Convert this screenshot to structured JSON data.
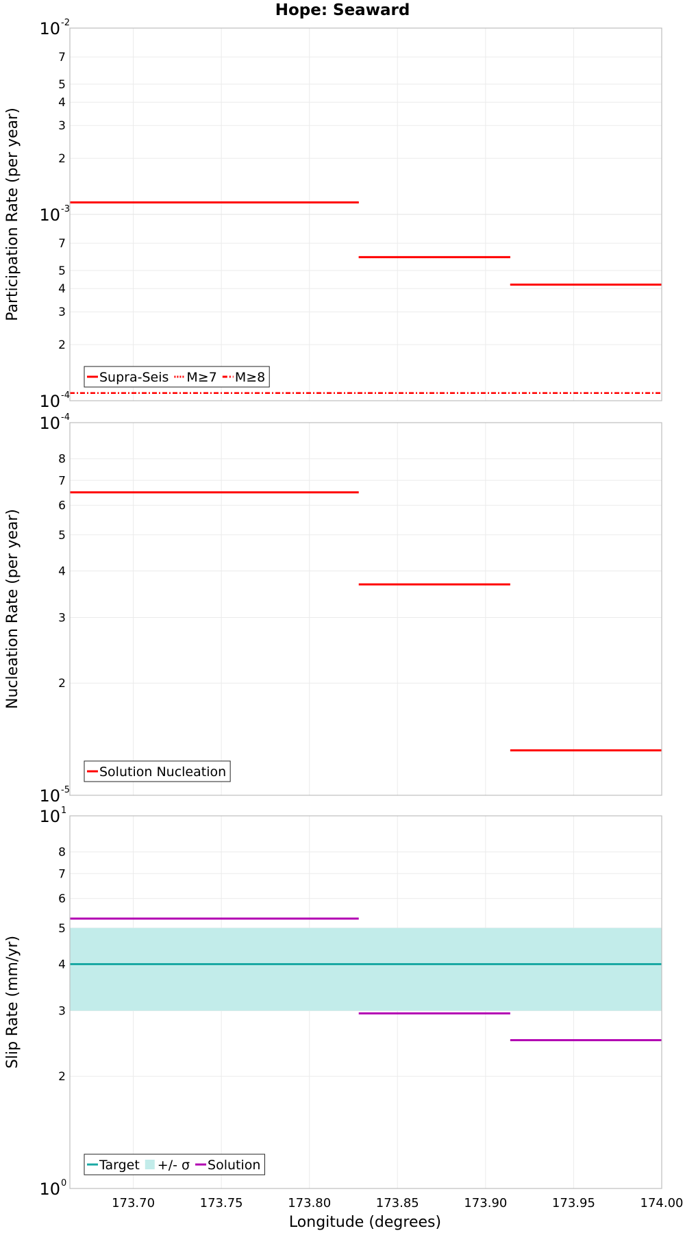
{
  "figure": {
    "title": "Hope: Seaward",
    "xlabel": "Longitude (degrees)"
  },
  "chart_data": [
    {
      "type": "line",
      "id": "participation",
      "ylabel": "Participation Rate (per year)",
      "yscale": "log",
      "ylim": [
        0.0001,
        0.01
      ],
      "xlim": [
        173.664,
        174.0
      ],
      "major_ticks": [
        {
          "value": 0.01,
          "base": "10",
          "exp": "-2"
        },
        {
          "value": 0.001,
          "base": "10",
          "exp": "-3"
        },
        {
          "value": 0.0001,
          "base": "10",
          "exp": "-4"
        }
      ],
      "minor_ticks": [
        {
          "value": 0.007,
          "label": "7"
        },
        {
          "value": 0.005,
          "label": "5"
        },
        {
          "value": 0.004,
          "label": "4"
        },
        {
          "value": 0.003,
          "label": "3"
        },
        {
          "value": 0.002,
          "label": "2"
        },
        {
          "value": 0.0007,
          "label": "7"
        },
        {
          "value": 0.0005,
          "label": "5"
        },
        {
          "value": 0.0004,
          "label": "4"
        },
        {
          "value": 0.0003,
          "label": "3"
        },
        {
          "value": 0.0002,
          "label": "2"
        }
      ],
      "series": [
        {
          "name": "Supra-Seis",
          "color": "#ff0000",
          "style": "solid",
          "segments": [
            {
              "x": [
                173.664,
                173.828
              ],
              "y": 0.00116
            },
            {
              "x": [
                173.828,
                173.914
              ],
              "y": 0.00059
            },
            {
              "x": [
                173.914,
                174.0
              ],
              "y": 0.00042
            }
          ]
        },
        {
          "name": "M≥7",
          "color": "#ff0000",
          "style": "dotted",
          "segments": [
            {
              "x": [
                173.664,
                173.828
              ],
              "y": 0.00116
            },
            {
              "x": [
                173.828,
                173.914
              ],
              "y": 0.00059
            },
            {
              "x": [
                173.914,
                174.0
              ],
              "y": 0.00042
            }
          ]
        },
        {
          "name": "M≥8",
          "color": "#ff0000",
          "style": "dashdot",
          "segments": [
            {
              "x": [
                173.664,
                174.0
              ],
              "y": 0.00011
            }
          ]
        }
      ]
    },
    {
      "type": "line",
      "id": "nucleation",
      "ylabel": "Nucleation Rate (per year)",
      "yscale": "log",
      "ylim": [
        1e-05,
        0.0001
      ],
      "xlim": [
        173.664,
        174.0
      ],
      "major_ticks": [
        {
          "value": 0.0001,
          "base": "10",
          "exp": "-4"
        },
        {
          "value": 1e-05,
          "base": "10",
          "exp": "-5"
        }
      ],
      "minor_ticks": [
        {
          "value": 8e-05,
          "label": "8"
        },
        {
          "value": 7e-05,
          "label": "7"
        },
        {
          "value": 6e-05,
          "label": "6"
        },
        {
          "value": 5e-05,
          "label": "5"
        },
        {
          "value": 4e-05,
          "label": "4"
        },
        {
          "value": 3e-05,
          "label": "3"
        },
        {
          "value": 2e-05,
          "label": "2"
        }
      ],
      "series": [
        {
          "name": "Solution Nucleation",
          "color": "#ff0000",
          "style": "solid",
          "segments": [
            {
              "x": [
                173.664,
                173.828
              ],
              "y": 6.5e-05
            },
            {
              "x": [
                173.828,
                173.914
              ],
              "y": 3.68e-05
            },
            {
              "x": [
                173.914,
                174.0
              ],
              "y": 1.32e-05
            }
          ]
        }
      ]
    },
    {
      "type": "line",
      "id": "slip",
      "ylabel": "Slip Rate (mm/yr)",
      "yscale": "log",
      "ylim": [
        1,
        10
      ],
      "xlim": [
        173.664,
        174.0
      ],
      "major_ticks": [
        {
          "value": 10,
          "base": "10",
          "exp": "1"
        },
        {
          "value": 1,
          "base": "10",
          "exp": "0"
        }
      ],
      "minor_ticks": [
        {
          "value": 8,
          "label": "8"
        },
        {
          "value": 7,
          "label": "7"
        },
        {
          "value": 6,
          "label": "6"
        },
        {
          "value": 5,
          "label": "5"
        },
        {
          "value": 4,
          "label": "4"
        },
        {
          "value": 3,
          "label": "3"
        },
        {
          "value": 2,
          "label": "2"
        }
      ],
      "band": {
        "name": "+/- σ",
        "color": "#c2ecea",
        "y": [
          3.0,
          5.0
        ],
        "x": [
          173.664,
          174.0
        ]
      },
      "series": [
        {
          "name": "Target",
          "color": "#1aa9a4",
          "style": "solid",
          "segments": [
            {
              "x": [
                173.664,
                174.0
              ],
              "y": 4.0
            }
          ]
        },
        {
          "name": "Solution",
          "color": "#b200b2",
          "style": "solid",
          "segments": [
            {
              "x": [
                173.664,
                173.828
              ],
              "y": 5.3
            },
            {
              "x": [
                173.828,
                173.914
              ],
              "y": 2.95
            },
            {
              "x": [
                173.914,
                174.0
              ],
              "y": 2.5
            }
          ]
        }
      ]
    }
  ],
  "xaxis": {
    "ticks": [
      {
        "value": 173.7,
        "label": "173.70"
      },
      {
        "value": 173.75,
        "label": "173.75"
      },
      {
        "value": 173.8,
        "label": "173.80"
      },
      {
        "value": 173.85,
        "label": "173.85"
      },
      {
        "value": 173.9,
        "label": "173.90"
      },
      {
        "value": 173.95,
        "label": "173.95"
      },
      {
        "value": 174.0,
        "label": "174.00"
      }
    ]
  },
  "legends": [
    {
      "panel": "participation",
      "placement": "bottom-left",
      "entries": [
        {
          "label": "Supra-Seis",
          "color": "#ff0000",
          "kind": "solid"
        },
        {
          "label": "M≥7",
          "color": "#ff0000",
          "kind": "dotted"
        },
        {
          "label": "M≥8",
          "color": "#ff0000",
          "kind": "dashdot"
        }
      ]
    },
    {
      "panel": "nucleation",
      "placement": "bottom-left",
      "entries": [
        {
          "label": "Solution Nucleation",
          "color": "#ff0000",
          "kind": "solid"
        }
      ]
    },
    {
      "panel": "slip",
      "placement": "bottom-left",
      "entries": [
        {
          "label": "Target",
          "color": "#1aa9a4",
          "kind": "solid"
        },
        {
          "label": "+/- σ",
          "color": "#c2ecea",
          "kind": "band"
        },
        {
          "label": "Solution",
          "color": "#b200b2",
          "kind": "solid"
        }
      ]
    }
  ]
}
